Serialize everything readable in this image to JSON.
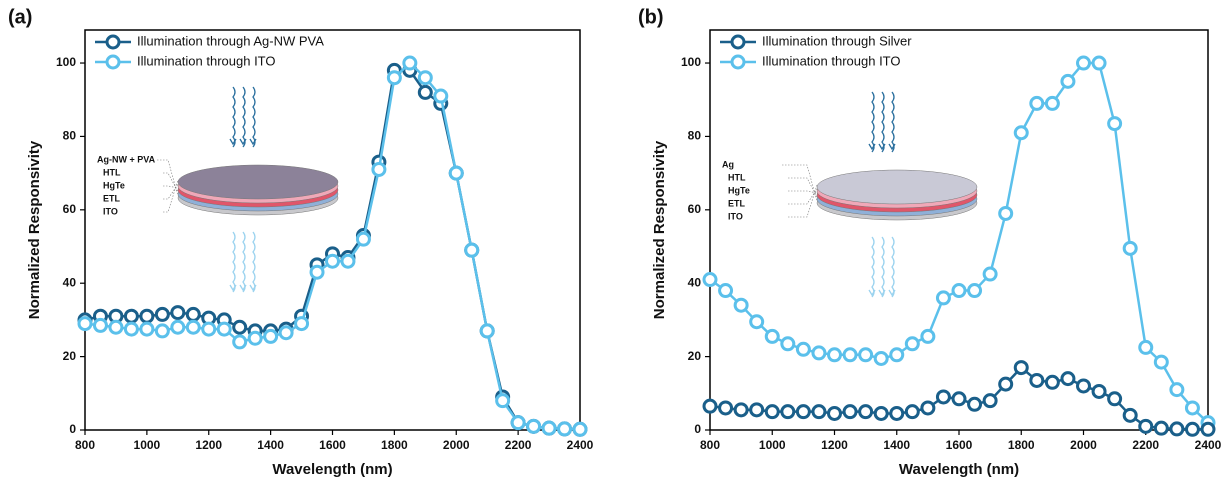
{
  "chart_data": [
    {
      "type": "line",
      "panel_label": "(a)",
      "x_label": "Wavelength (nm)",
      "y_label": "Normalized Responsivity",
      "x": [
        800,
        850,
        900,
        950,
        1000,
        1050,
        1100,
        1150,
        1200,
        1250,
        1300,
        1350,
        1400,
        1450,
        1500,
        1550,
        1600,
        1650,
        1700,
        1750,
        1800,
        1850,
        1900,
        1950,
        2000,
        2050,
        2100,
        2150,
        2200,
        2250,
        2300,
        2350,
        2400
      ],
      "series": [
        {
          "name": "Illumination through Ag-NW PVA",
          "color": "#1a5f8a",
          "values": [
            30,
            31,
            31,
            31,
            31,
            31.5,
            32,
            31.5,
            30.5,
            30,
            28,
            27,
            27,
            27.5,
            31,
            45,
            48,
            47,
            53,
            73,
            98,
            98,
            92,
            89,
            70,
            49,
            27,
            9,
            2,
            1,
            0.5,
            0.3,
            0.2
          ]
        },
        {
          "name": "Illumination through ITO",
          "color": "#5bc0eb",
          "values": [
            29,
            28.5,
            28,
            27.5,
            27.5,
            27,
            28,
            28,
            27.5,
            27.5,
            24,
            25,
            25.5,
            26.5,
            29,
            43,
            46,
            46,
            52,
            71,
            96,
            100,
            96,
            91,
            70,
            49,
            27,
            8,
            2,
            1,
            0.5,
            0.3,
            0.2
          ]
        }
      ],
      "inset_labels": [
        "Ag-NW + PVA",
        "HTL",
        "HgTe",
        "ETL",
        "ITO"
      ],
      "xlim": [
        800,
        2400
      ],
      "xticks": [
        800,
        1000,
        1200,
        1400,
        1600,
        1800,
        2000,
        2200,
        2400
      ],
      "ylim": [
        0,
        109
      ],
      "yticks": [
        0,
        20,
        40,
        60,
        80,
        100
      ]
    },
    {
      "type": "line",
      "panel_label": "(b)",
      "x_label": "Wavelength (nm)",
      "y_label": "Normalized Responsivity",
      "x": [
        800,
        850,
        900,
        950,
        1000,
        1050,
        1100,
        1150,
        1200,
        1250,
        1300,
        1350,
        1400,
        1450,
        1500,
        1550,
        1600,
        1650,
        1700,
        1750,
        1800,
        1850,
        1900,
        1950,
        2000,
        2050,
        2100,
        2150,
        2200,
        2250,
        2300,
        2350,
        2400
      ],
      "series": [
        {
          "name": "Illumination through Silver",
          "color": "#1a5f8a",
          "values": [
            6.5,
            6,
            5.5,
            5.5,
            5,
            5,
            5,
            5,
            4.5,
            5,
            5,
            4.5,
            4.5,
            5,
            6,
            9,
            8.5,
            7,
            8,
            12.5,
            17,
            13.5,
            13,
            14,
            12,
            10.5,
            8.5,
            4,
            1,
            0.5,
            0.3,
            0.2,
            0.2
          ]
        },
        {
          "name": "Illumination through ITO",
          "color": "#5bc0eb",
          "values": [
            41,
            38,
            34,
            29.5,
            25.5,
            23.5,
            22,
            21,
            20.5,
            20.5,
            20.5,
            19.5,
            20.5,
            23.5,
            25.5,
            36,
            38,
            38,
            42.5,
            59,
            81,
            89,
            89,
            95,
            100,
            100,
            83.5,
            49.5,
            22.5,
            18.5,
            11,
            6,
            2
          ]
        }
      ],
      "inset_labels": [
        "Ag",
        "HTL",
        "HgTe",
        "ETL",
        "ITO"
      ],
      "xlim": [
        800,
        2400
      ],
      "xticks": [
        800,
        1000,
        1200,
        1400,
        1600,
        1800,
        2000,
        2200,
        2400
      ],
      "ylim": [
        0,
        109
      ],
      "yticks": [
        0,
        20,
        40,
        60,
        80,
        100
      ]
    }
  ]
}
